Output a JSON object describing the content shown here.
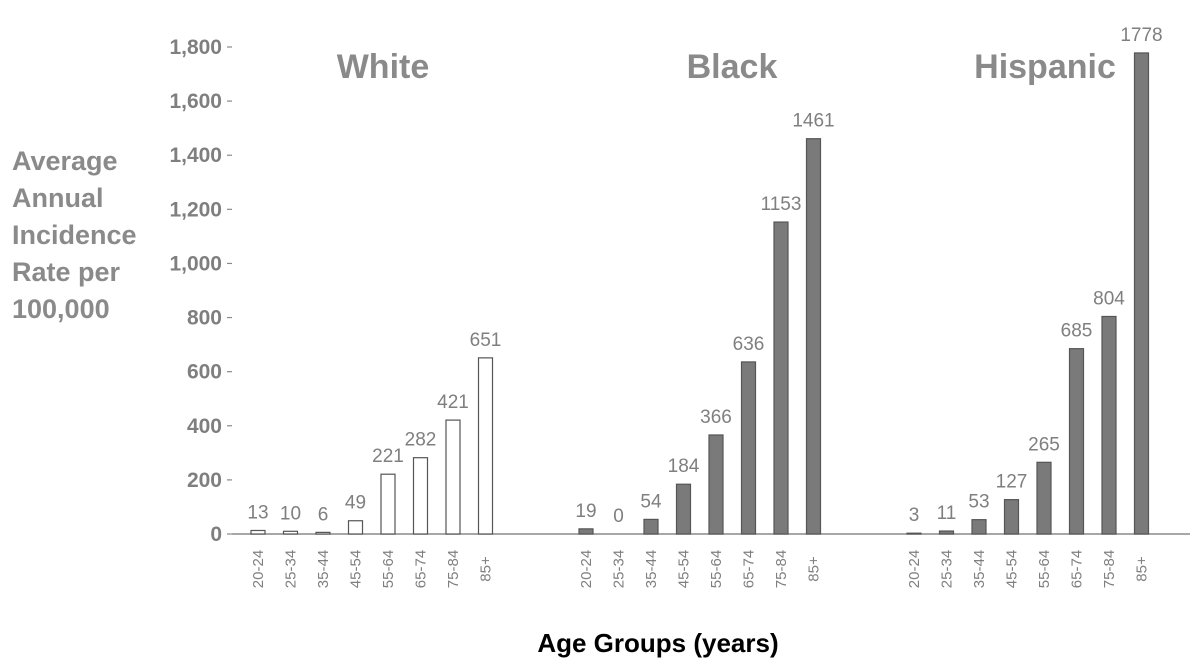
{
  "chart_data": {
    "type": "bar",
    "ylabel_lines": [
      "Average",
      "Annual",
      "Incidence",
      "Rate per",
      "100,000"
    ],
    "xlabel": "Age Groups (years)",
    "ylim": [
      0,
      1800
    ],
    "yticks": [
      0,
      200,
      400,
      600,
      800,
      1000,
      1200,
      1400,
      1600,
      1800
    ],
    "ytick_labels": [
      "0",
      "200",
      "400",
      "600",
      "800",
      "1,000",
      "1,200",
      "1,400",
      "1,600",
      "1,800"
    ],
    "categories": [
      "20-24",
      "25-34",
      "35-44",
      "45-54",
      "55-64",
      "65-74",
      "75-84",
      "85+"
    ],
    "grid": false,
    "series": [
      {
        "name": "White",
        "color": "#ffffff",
        "edge_color": "#555555",
        "values": [
          13,
          10,
          6,
          49,
          221,
          282,
          421,
          651
        ],
        "value_labels": [
          "13",
          "10",
          "6",
          "49",
          "221",
          "282",
          "421",
          "651"
        ]
      },
      {
        "name": "Black",
        "color": "#7a7a7a",
        "edge_color": "#555555",
        "values": [
          19,
          0,
          54,
          184,
          366,
          636,
          1153,
          1461
        ],
        "value_labels": [
          "19",
          "0",
          "54",
          "184",
          "366",
          "636",
          "1153",
          "1461"
        ]
      },
      {
        "name": "Hispanic",
        "color": "#7a7a7a",
        "edge_color": "#555555",
        "values": [
          3,
          11,
          53,
          127,
          265,
          685,
          804,
          1778
        ],
        "value_labels": [
          "3",
          "11",
          "53",
          "127",
          "265",
          "685",
          "804",
          "1778"
        ]
      }
    ]
  }
}
